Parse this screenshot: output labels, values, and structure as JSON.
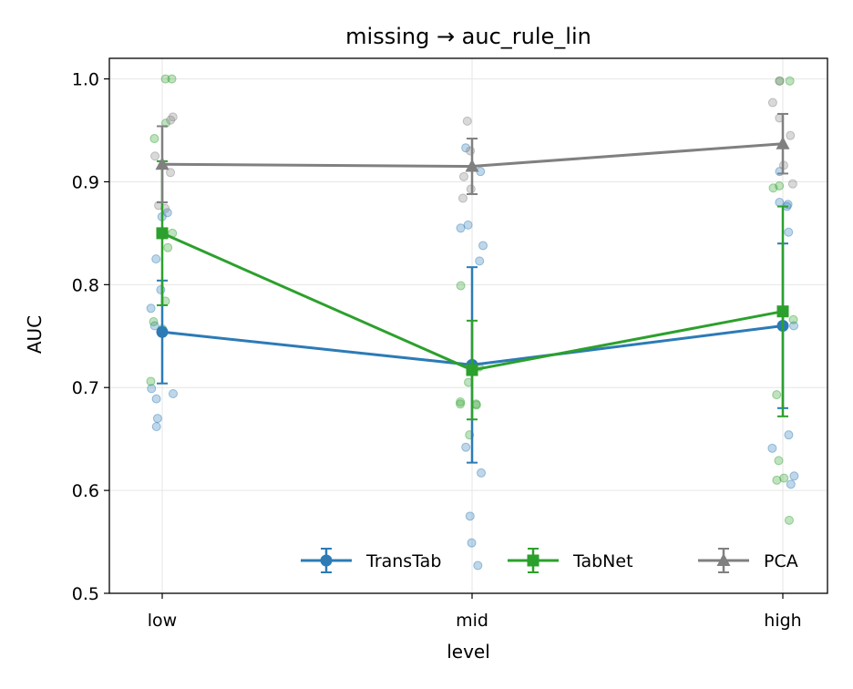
{
  "chart_data": {
    "type": "line",
    "title": "missing → auc_rule_lin",
    "xlabel": "level",
    "ylabel": "AUC",
    "categories": [
      "low",
      "mid",
      "high"
    ],
    "ylim": [
      0.5,
      1.02
    ],
    "yticks": [
      "0.5",
      "0.6",
      "0.7",
      "0.8",
      "0.9",
      "1.0"
    ],
    "grid": true,
    "legend_position": "lower-right",
    "series": [
      {
        "name": "TransTab",
        "color": "#2c7bb6",
        "marker": "circle",
        "values": [
          0.754,
          0.722,
          0.76
        ],
        "errors": [
          0.05,
          0.095,
          0.08
        ],
        "points": [
          [
            0.795,
            0.866,
            0.825,
            0.777,
            0.76,
            0.699,
            0.694,
            0.689,
            0.662,
            0.67,
            0.87
          ],
          [
            0.933,
            0.858,
            0.855,
            0.838,
            0.823,
            0.642,
            0.617,
            0.575,
            0.549,
            0.527,
            0.91
          ],
          [
            0.91,
            0.88,
            0.878,
            0.851,
            0.654,
            0.641,
            0.614,
            0.606,
            0.76,
            0.876
          ]
        ]
      },
      {
        "name": "TabNet",
        "color": "#2ca02c",
        "marker": "square",
        "values": [
          0.85,
          0.717,
          0.774
        ],
        "errors": [
          0.07,
          0.048,
          0.102
        ],
        "points": [
          [
            1.0,
            1.0,
            0.957,
            0.942,
            0.836,
            0.784,
            0.764,
            0.757,
            0.706,
            0.85
          ],
          [
            0.799,
            0.705,
            0.686,
            0.684,
            0.684,
            0.683,
            0.654,
            0.72
          ],
          [
            0.998,
            0.998,
            0.896,
            0.894,
            0.766,
            0.693,
            0.629,
            0.612,
            0.61,
            0.571
          ]
        ]
      },
      {
        "name": "PCA",
        "color": "#808080",
        "marker": "triangle",
        "values": [
          0.917,
          0.915,
          0.937
        ],
        "errors": [
          0.037,
          0.027,
          0.029
        ],
        "points": [
          [
            0.963,
            0.96,
            0.877,
            0.874,
            0.909,
            0.925
          ],
          [
            0.959,
            0.93,
            0.893,
            0.884,
            0.905
          ],
          [
            0.998,
            0.977,
            0.962,
            0.916,
            0.898,
            0.945
          ]
        ]
      }
    ]
  }
}
